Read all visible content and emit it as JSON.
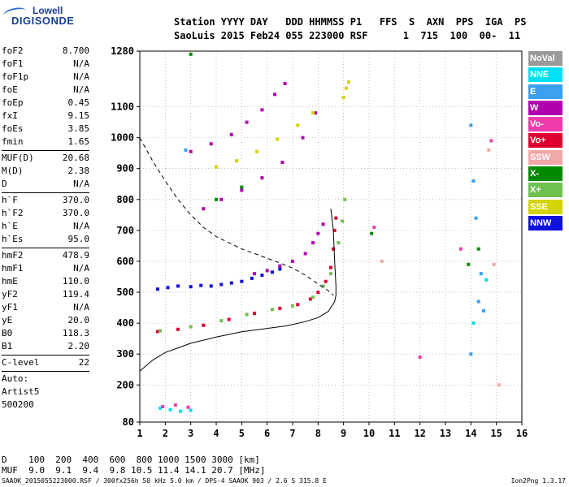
{
  "logo": {
    "line1": "Lowell",
    "line2": "DIGISONDE"
  },
  "header": {
    "row1": "Station YYYY DAY   DDD HHMMSS P1   FFS  S  AXN  PPS  IGA  PS",
    "row2": "SaoLuis 2015 Feb24 055 223000 RSF      1  715  100  00-  11"
  },
  "params": [
    [
      {
        "label": "foF2",
        "value": "8.700"
      },
      {
        "label": "foF1",
        "value": "N/A"
      },
      {
        "label": "foF1p",
        "value": "N/A"
      },
      {
        "label": "foE",
        "value": "N/A"
      },
      {
        "label": "foEp",
        "value": "0.45"
      },
      {
        "label": "fxI",
        "value": "9.15"
      },
      {
        "label": "foEs",
        "value": "3.85"
      },
      {
        "label": "fmin",
        "value": "1.65"
      }
    ],
    [
      {
        "label": "MUF(D)",
        "value": "20.68"
      },
      {
        "label": "M(D)",
        "value": "2.38"
      },
      {
        "label": "D",
        "value": "N/A"
      }
    ],
    [
      {
        "label": "h`F",
        "value": "370.0"
      },
      {
        "label": "h`F2",
        "value": "370.0"
      },
      {
        "label": "h`E",
        "value": "N/A"
      },
      {
        "label": "h`Es",
        "value": "95.0"
      }
    ],
    [
      {
        "label": "hmF2",
        "value": "478.9"
      },
      {
        "label": "hmF1",
        "value": "N/A"
      },
      {
        "label": "hmE",
        "value": "110.0"
      },
      {
        "label": "yF2",
        "value": "119.4"
      },
      {
        "label": "yF1",
        "value": "N/A"
      },
      {
        "label": "yE",
        "value": "20.0"
      },
      {
        "label": "B0",
        "value": "118.3"
      },
      {
        "label": "B1",
        "value": "2.20"
      }
    ],
    [
      {
        "label": "C-level",
        "value": "22"
      }
    ]
  ],
  "autoscale": {
    "line1": "Auto:",
    "line2": "Artist5",
    "line3": "500200"
  },
  "legend": [
    {
      "label": "NoVal",
      "color": "#9a9a9a"
    },
    {
      "label": "NNE",
      "color": "#00e0f0"
    },
    {
      "label": "E",
      "color": "#3aa0f0"
    },
    {
      "label": "W",
      "color": "#b000b0"
    },
    {
      "label": "Vo-",
      "color": "#f03caa"
    },
    {
      "label": "Vo+",
      "color": "#e00030"
    },
    {
      "label": "SSW",
      "color": "#f0a8a8"
    },
    {
      "label": "X-",
      "color": "#008a00"
    },
    {
      "label": "X+",
      "color": "#70c050"
    },
    {
      "label": "SSE",
      "color": "#d4d400"
    },
    {
      "label": "NNW",
      "color": "#1010e0"
    }
  ],
  "muf_table": {
    "row1": "D    100  200  400  600  800 1000 1500 3000 [km]",
    "row2": "MUF  9.0  9.1  9.4  9.8 10.5 11.4 14.1 20.7 [MHz]"
  },
  "footer": {
    "left": "SAAOK_2015055223000.RSF / 300fx256h 50 kHz 5.0 km / DPS-4 SAAOK 903 / 2.6 S 315.8 E",
    "right": "Ion2Png 1.3.17"
  },
  "chart_data": {
    "type": "scatter",
    "title": "",
    "xlabel": "",
    "ylabel": "",
    "xlim": [
      1,
      16
    ],
    "ylim": [
      80,
      1280
    ],
    "x_ticks": [
      1,
      2,
      3,
      4,
      5,
      6,
      7,
      8,
      9,
      10,
      11,
      12,
      13,
      14,
      15,
      16
    ],
    "y_ticks": [
      80,
      200,
      300,
      400,
      500,
      600,
      700,
      800,
      900,
      1000,
      1100,
      1280
    ],
    "grid": "dotted",
    "series": [
      {
        "name": "Vo+",
        "color": "#e00030",
        "points": [
          [
            1.7,
            373
          ],
          [
            2.5,
            380
          ],
          [
            3.5,
            393
          ],
          [
            4.5,
            412
          ],
          [
            5.5,
            432
          ],
          [
            6.5,
            448
          ],
          [
            7.2,
            460
          ],
          [
            7.7,
            478
          ],
          [
            8.0,
            500
          ],
          [
            8.3,
            535
          ],
          [
            8.5,
            580
          ],
          [
            8.6,
            640
          ],
          [
            8.65,
            700
          ],
          [
            8.7,
            740
          ]
        ]
      },
      {
        "name": "X+",
        "color": "#70c050",
        "points": [
          [
            1.8,
            375
          ],
          [
            3.0,
            388
          ],
          [
            4.2,
            408
          ],
          [
            5.2,
            428
          ],
          [
            6.2,
            444
          ],
          [
            7.0,
            456
          ],
          [
            7.8,
            484
          ],
          [
            8.2,
            520
          ],
          [
            8.5,
            560
          ],
          [
            8.8,
            660
          ],
          [
            8.95,
            730
          ],
          [
            9.05,
            800
          ]
        ]
      },
      {
        "name": "NNW",
        "color": "#1010e0",
        "points": [
          [
            1.7,
            510
          ],
          [
            2.1,
            515
          ],
          [
            2.5,
            520
          ],
          [
            3.0,
            518
          ],
          [
            3.4,
            522
          ],
          [
            3.8,
            520
          ],
          [
            4.2,
            525
          ],
          [
            4.6,
            530
          ],
          [
            5.0,
            535
          ],
          [
            5.4,
            545
          ],
          [
            5.8,
            555
          ],
          [
            6.2,
            565
          ],
          [
            6.5,
            575
          ]
        ]
      },
      {
        "name": "W",
        "color": "#b000b0",
        "points": [
          [
            5.5,
            560
          ],
          [
            6.0,
            570
          ],
          [
            6.5,
            585
          ],
          [
            7.0,
            600
          ],
          [
            7.5,
            625
          ],
          [
            7.8,
            660
          ],
          [
            8.0,
            690
          ],
          [
            8.2,
            720
          ],
          [
            3.0,
            955
          ],
          [
            3.8,
            980
          ],
          [
            4.6,
            1010
          ],
          [
            5.2,
            1050
          ],
          [
            5.8,
            1090
          ],
          [
            6.3,
            1140
          ],
          [
            6.7,
            1175
          ],
          [
            3.5,
            770
          ],
          [
            4.2,
            800
          ],
          [
            5.0,
            830
          ],
          [
            5.8,
            870
          ],
          [
            6.6,
            920
          ],
          [
            7.4,
            1000
          ],
          [
            7.9,
            1080
          ]
        ]
      },
      {
        "name": "SSE",
        "color": "#d4d400",
        "points": [
          [
            4.0,
            905
          ],
          [
            4.8,
            925
          ],
          [
            5.6,
            955
          ],
          [
            6.4,
            995
          ],
          [
            7.2,
            1040
          ],
          [
            7.8,
            1080
          ],
          [
            9.0,
            1130
          ],
          [
            9.1,
            1160
          ],
          [
            9.2,
            1180
          ]
        ]
      },
      {
        "name": "E",
        "color": "#3aa0f0",
        "points": [
          [
            14.0,
            1040
          ],
          [
            14.1,
            860
          ],
          [
            14.2,
            740
          ],
          [
            14.3,
            470
          ],
          [
            14.5,
            440
          ],
          [
            2.8,
            960
          ],
          [
            14.4,
            560
          ],
          [
            14.0,
            300
          ]
        ]
      },
      {
        "name": "X-",
        "color": "#008a00",
        "points": [
          [
            3.0,
            1270
          ],
          [
            4.0,
            800
          ],
          [
            5.0,
            840
          ],
          [
            10.1,
            690
          ],
          [
            14.3,
            640
          ],
          [
            13.9,
            590
          ]
        ]
      },
      {
        "name": "NNE",
        "color": "#00e0f0",
        "points": [
          [
            1.8,
            125
          ],
          [
            2.2,
            120
          ],
          [
            2.6,
            115
          ],
          [
            3.0,
            118
          ],
          [
            14.1,
            400
          ],
          [
            14.6,
            540
          ]
        ]
      },
      {
        "name": "Vo-",
        "color": "#f03caa",
        "points": [
          [
            1.9,
            130
          ],
          [
            2.4,
            135
          ],
          [
            2.9,
            128
          ],
          [
            13.6,
            640
          ],
          [
            14.8,
            990
          ],
          [
            10.2,
            710
          ],
          [
            12.0,
            290
          ]
        ]
      },
      {
        "name": "SSW",
        "color": "#f0a8a8",
        "points": [
          [
            14.9,
            590
          ],
          [
            14.7,
            960
          ],
          [
            10.5,
            600
          ],
          [
            15.1,
            200
          ]
        ]
      }
    ],
    "curves": [
      {
        "name": "true-height-profile",
        "points": [
          [
            1.0,
            245
          ],
          [
            1.5,
            280
          ],
          [
            2.0,
            305
          ],
          [
            2.5,
            320
          ],
          [
            3.0,
            335
          ],
          [
            4.0,
            355
          ],
          [
            5.0,
            372
          ],
          [
            6.0,
            383
          ],
          [
            6.8,
            392
          ],
          [
            7.5,
            405
          ],
          [
            8.0,
            418
          ],
          [
            8.4,
            438
          ],
          [
            8.65,
            470
          ],
          [
            8.7,
            490
          ],
          [
            8.7,
            520
          ],
          [
            8.65,
            600
          ],
          [
            8.6,
            700
          ],
          [
            8.5,
            770
          ]
        ]
      },
      {
        "name": "model-trace",
        "style": "dashed",
        "points": [
          [
            1.0,
            1000
          ],
          [
            1.5,
            925
          ],
          [
            2.0,
            860
          ],
          [
            2.5,
            800
          ],
          [
            3.0,
            750
          ],
          [
            3.5,
            710
          ],
          [
            4.0,
            680
          ],
          [
            4.5,
            660
          ],
          [
            5.0,
            640
          ],
          [
            5.5,
            625
          ],
          [
            6.0,
            610
          ],
          [
            6.5,
            595
          ],
          [
            7.0,
            578
          ],
          [
            7.5,
            555
          ],
          [
            8.0,
            527
          ],
          [
            8.4,
            505
          ],
          [
            8.6,
            490
          ]
        ]
      }
    ]
  }
}
